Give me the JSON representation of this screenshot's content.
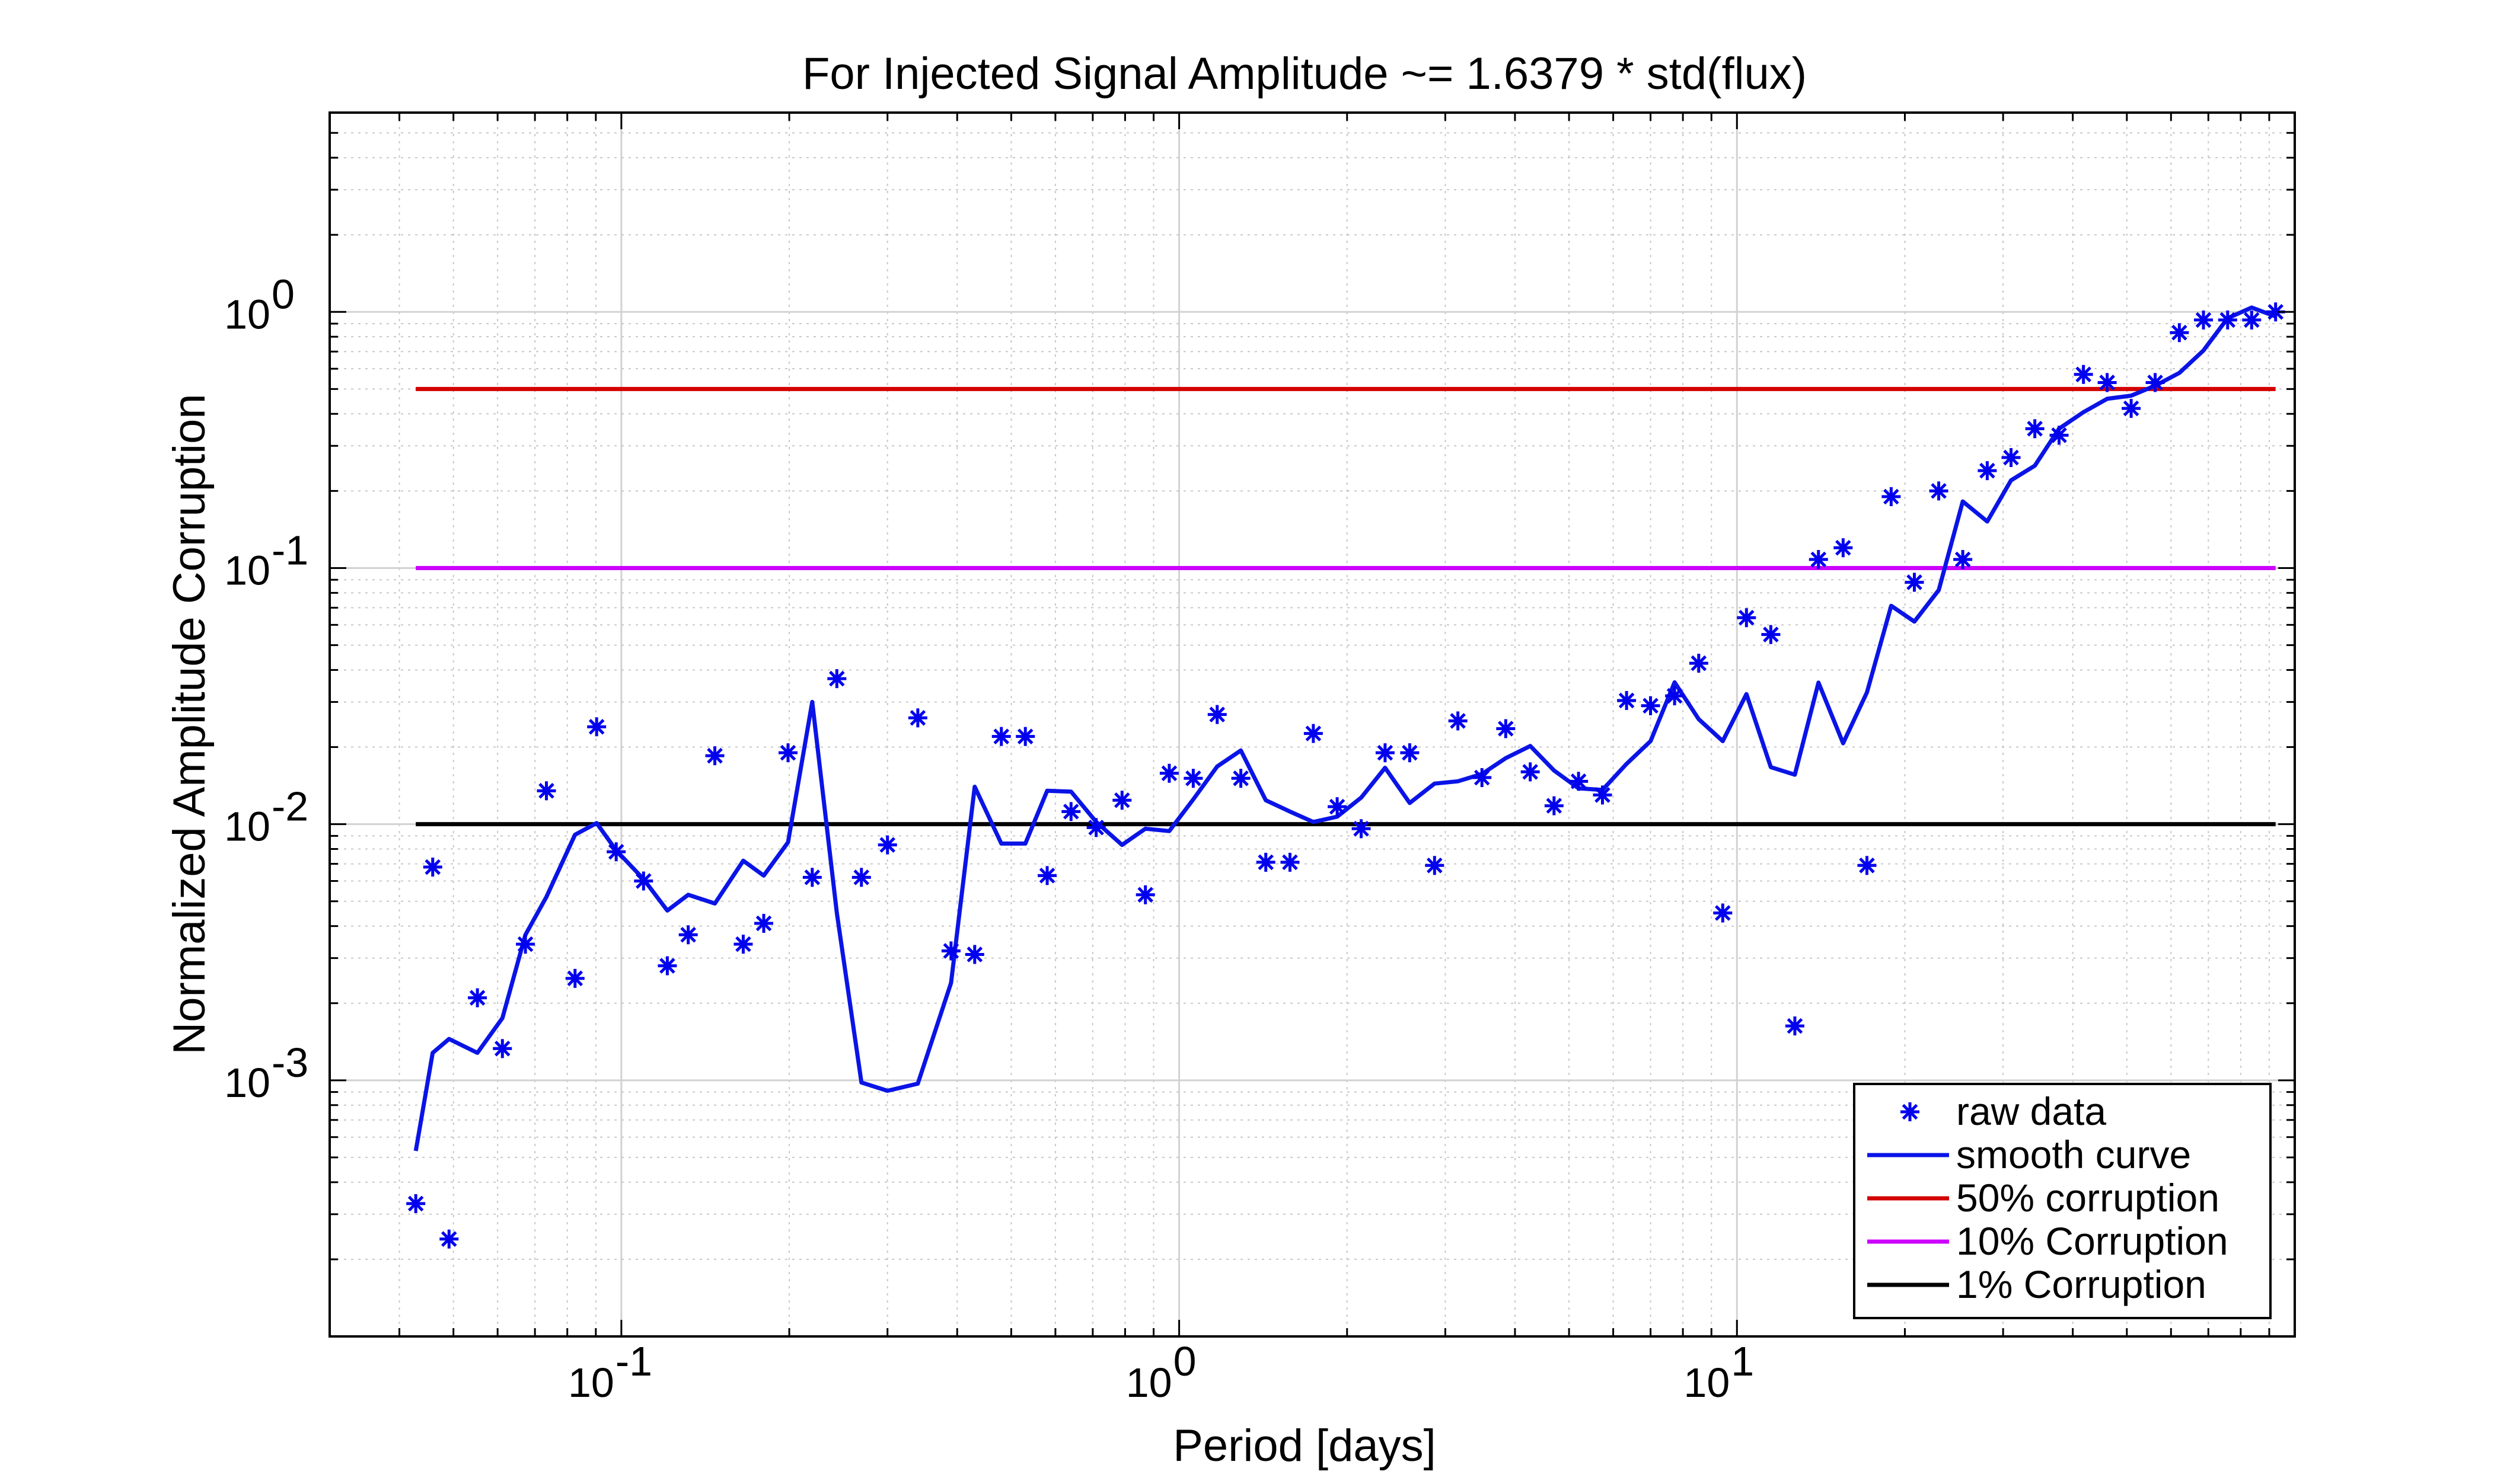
{
  "chart_data": {
    "type": "line",
    "title": "For Injected Signal Amplitude ~= 1.6379 * std(flux)",
    "xlabel": "Period [days]",
    "ylabel": "Normalized Amplitude Corruption",
    "xscale": "log",
    "yscale": "log",
    "xlim": [
      0.03,
      100
    ],
    "ylim": [
      0.0001,
      6
    ],
    "grid": true,
    "minor_grid": true,
    "legend_position": "bottom-right",
    "x_ticks": [
      {
        "value": 0.1,
        "base": "10",
        "exp": "-1"
      },
      {
        "value": 1,
        "base": "10",
        "exp": "0"
      },
      {
        "value": 10,
        "base": "10",
        "exp": "1"
      }
    ],
    "y_ticks": [
      {
        "value": 0.001,
        "base": "10",
        "exp": "-3"
      },
      {
        "value": 0.01,
        "base": "10",
        "exp": "-2"
      },
      {
        "value": 0.1,
        "base": "10",
        "exp": "-1"
      },
      {
        "value": 1,
        "base": "10",
        "exp": "0"
      }
    ],
    "series": [
      {
        "name": "raw data",
        "style": "marker",
        "color": "#0000ee",
        "x": [
          0.0428,
          0.0459,
          0.0491,
          0.0552,
          0.0612,
          0.0673,
          0.0734,
          0.0826,
          0.0903,
          0.0979,
          0.1096,
          0.1209,
          0.1318,
          0.1471,
          0.1654,
          0.18,
          0.199,
          0.2199,
          0.2434,
          0.2694,
          0.3,
          0.34,
          0.39,
          0.43,
          0.48,
          0.53,
          0.58,
          0.64,
          0.71,
          0.79,
          0.87,
          0.96,
          1.06,
          1.17,
          1.29,
          1.43,
          1.58,
          1.74,
          1.92,
          2.12,
          2.34,
          2.59,
          2.87,
          3.16,
          3.49,
          3.85,
          4.26,
          4.7,
          5.2,
          5.74,
          6.34,
          7.0,
          7.73,
          8.54,
          9.43,
          10.4,
          11.5,
          12.7,
          14.0,
          15.5,
          17.1,
          18.9,
          20.8,
          23.0,
          25.4,
          28.1,
          31.0,
          34.2,
          37.8,
          41.8,
          46.1,
          50.9,
          56.2,
          62.1,
          68.6,
          75.8,
          83.7,
          92.4
        ],
        "values": [
          0.00033,
          0.0068,
          0.00024,
          0.0021,
          0.00133,
          0.0034,
          0.0135,
          0.0025,
          0.024,
          0.0078,
          0.006,
          0.0028,
          0.0037,
          0.0185,
          0.0034,
          0.0041,
          0.019,
          0.0062,
          0.037,
          0.0062,
          0.0083,
          0.026,
          0.0032,
          0.0031,
          0.022,
          0.022,
          0.0063,
          0.0112,
          0.0097,
          0.0124,
          0.0053,
          0.0158,
          0.0151,
          0.0268,
          0.0151,
          0.0071,
          0.0071,
          0.0226,
          0.0117,
          0.0096,
          0.019,
          0.019,
          0.0069,
          0.0253,
          0.0152,
          0.0236,
          0.016,
          0.0118,
          0.0147,
          0.013,
          0.0304,
          0.029,
          0.0317,
          0.0425,
          0.0045,
          0.064,
          0.055,
          0.00163,
          0.108,
          0.12,
          0.0069,
          0.19,
          0.088,
          0.2,
          0.108,
          0.24,
          0.27,
          0.35,
          0.33,
          0.57,
          0.53,
          0.42,
          0.53,
          0.83,
          0.93,
          0.93,
          0.93,
          1.0
        ]
      },
      {
        "name": "smooth curve",
        "style": "line",
        "color": "#0a14e6",
        "x": [
          0.0428,
          0.0459,
          0.0491,
          0.0552,
          0.0612,
          0.0673,
          0.0734,
          0.0826,
          0.0903,
          0.0979,
          0.1096,
          0.1209,
          0.1318,
          0.1471,
          0.1654,
          0.18,
          0.199,
          0.2199,
          0.2434,
          0.2694,
          0.3,
          0.34,
          0.39,
          0.43,
          0.48,
          0.53,
          0.58,
          0.64,
          0.71,
          0.79,
          0.87,
          0.96,
          1.06,
          1.17,
          1.29,
          1.43,
          1.58,
          1.74,
          1.92,
          2.12,
          2.34,
          2.59,
          2.87,
          3.16,
          3.49,
          3.85,
          4.26,
          4.7,
          5.2,
          5.74,
          6.34,
          7.0,
          7.73,
          8.54,
          9.43,
          10.4,
          11.5,
          12.7,
          14.0,
          15.5,
          17.1,
          18.9,
          20.8,
          23.0,
          25.4,
          28.1,
          31.0,
          34.2,
          37.8,
          41.8,
          46.1,
          50.9,
          56.2,
          62.1,
          68.6,
          75.8,
          83.7,
          92.4
        ],
        "values": [
          0.00053,
          0.00128,
          0.00145,
          0.00128,
          0.00175,
          0.0037,
          0.0052,
          0.0091,
          0.0101,
          0.0079,
          0.0061,
          0.0046,
          0.0053,
          0.0049,
          0.0072,
          0.0063,
          0.0085,
          0.03,
          0.0045,
          0.00098,
          0.00091,
          0.00097,
          0.0024,
          0.014,
          0.0084,
          0.0084,
          0.0135,
          0.0134,
          0.0102,
          0.0083,
          0.0096,
          0.0094,
          0.0125,
          0.0168,
          0.0194,
          0.0124,
          0.0112,
          0.0102,
          0.0107,
          0.0127,
          0.0166,
          0.0121,
          0.0144,
          0.0147,
          0.0157,
          0.0181,
          0.0202,
          0.0162,
          0.0138,
          0.0136,
          0.0172,
          0.0211,
          0.0358,
          0.0257,
          0.0211,
          0.0322,
          0.0167,
          0.0156,
          0.0357,
          0.0207,
          0.0327,
          0.0712,
          0.0618,
          0.082,
          0.182,
          0.152,
          0.22,
          0.251,
          0.35,
          0.406,
          0.458,
          0.471,
          0.515,
          0.578,
          0.707,
          0.945,
          1.04,
          0.96
        ]
      },
      {
        "name": "50% corruption",
        "style": "hline",
        "color": "#d40000",
        "y": 0.5,
        "x_range": [
          0.0428,
          92.4
        ]
      },
      {
        "name": "10% Corruption",
        "style": "hline",
        "color": "#cc00ff",
        "y": 0.1,
        "x_range": [
          0.0428,
          92.4
        ]
      },
      {
        "name": "1% Corruption",
        "style": "hline",
        "color": "#000000",
        "y": 0.01,
        "x_range": [
          0.0428,
          92.4
        ]
      }
    ]
  }
}
